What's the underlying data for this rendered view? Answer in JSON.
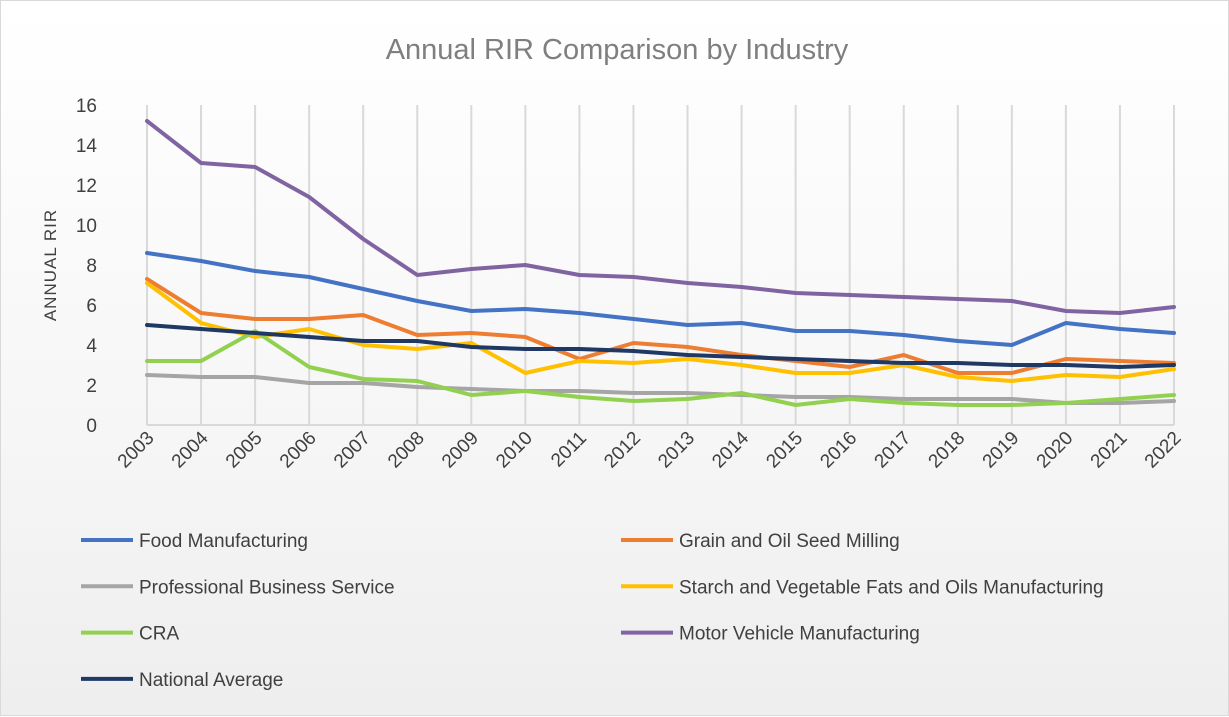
{
  "chart_data": {
    "type": "line",
    "title": "Annual RIR Comparison by Industry",
    "xlabel": "",
    "ylabel": "ANNUAL RIR",
    "ylim": [
      0,
      16
    ],
    "yticks": [
      0,
      2,
      4,
      6,
      8,
      10,
      12,
      14,
      16
    ],
    "grid": "vertical",
    "legend": "bottom",
    "x": [
      "2003",
      "2004",
      "2005",
      "2006",
      "2007",
      "2008",
      "2009",
      "2010",
      "2011",
      "2012",
      "2013",
      "2014",
      "2015",
      "2016",
      "2017",
      "2018",
      "2019",
      "2020",
      "2021",
      "2022"
    ],
    "series": [
      {
        "name": "Food Manufacturing",
        "color": "#4472c4",
        "values": [
          8.6,
          8.2,
          7.7,
          7.4,
          6.8,
          6.2,
          5.7,
          5.8,
          5.6,
          5.3,
          5.0,
          5.1,
          4.7,
          4.7,
          4.5,
          4.2,
          4.0,
          5.1,
          4.8,
          4.6
        ]
      },
      {
        "name": "Grain and Oil Seed Milling",
        "color": "#ed7d31",
        "values": [
          7.3,
          5.6,
          5.3,
          5.3,
          5.5,
          4.5,
          4.6,
          4.4,
          3.3,
          4.1,
          3.9,
          3.5,
          3.2,
          2.9,
          3.5,
          2.6,
          2.6,
          3.3,
          3.2,
          3.1
        ]
      },
      {
        "name": "Professional Business Service",
        "color": "#a5a5a5",
        "values": [
          2.5,
          2.4,
          2.4,
          2.1,
          2.1,
          1.9,
          1.8,
          1.7,
          1.7,
          1.6,
          1.6,
          1.5,
          1.4,
          1.4,
          1.3,
          1.3,
          1.3,
          1.1,
          1.1,
          1.2
        ]
      },
      {
        "name": "Starch and Vegetable Fats and Oils Manufacturing",
        "color": "#ffc000",
        "values": [
          7.1,
          5.1,
          4.4,
          4.8,
          4.0,
          3.8,
          4.1,
          2.6,
          3.2,
          3.1,
          3.3,
          3.0,
          2.6,
          2.6,
          3.0,
          2.4,
          2.2,
          2.5,
          2.4,
          2.8
        ]
      },
      {
        "name": "CRA",
        "color": "#92d050",
        "values": [
          3.2,
          3.2,
          4.7,
          2.9,
          2.3,
          2.2,
          1.5,
          1.7,
          1.4,
          1.2,
          1.3,
          1.6,
          1.0,
          1.3,
          1.1,
          1.0,
          1.0,
          1.1,
          1.3,
          1.5
        ]
      },
      {
        "name": "Motor Vehicle Manufacturing",
        "color": "#8064a2",
        "values": [
          15.2,
          13.1,
          12.9,
          11.4,
          9.3,
          7.5,
          7.8,
          8.0,
          7.5,
          7.4,
          7.1,
          6.9,
          6.6,
          6.5,
          6.4,
          6.3,
          6.2,
          5.7,
          5.6,
          5.9
        ]
      },
      {
        "name": "National Average",
        "color": "#1f3864",
        "values": [
          5.0,
          4.8,
          4.6,
          4.4,
          4.2,
          4.2,
          3.9,
          3.8,
          3.8,
          3.7,
          3.5,
          3.4,
          3.3,
          3.2,
          3.1,
          3.1,
          3.0,
          3.0,
          2.9,
          3.0
        ]
      }
    ]
  }
}
